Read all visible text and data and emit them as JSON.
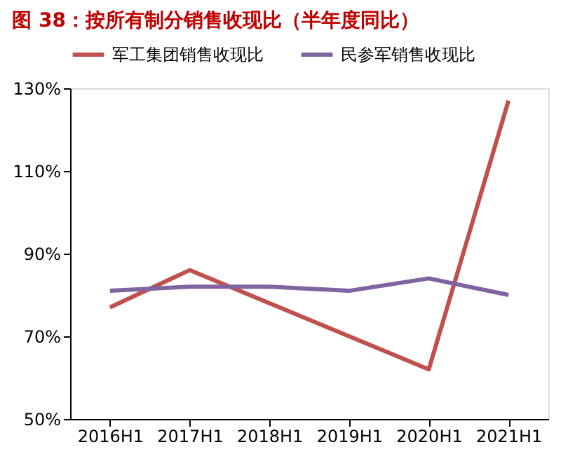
{
  "chart_data": {
    "type": "line",
    "title": "图 38：按所有制分销售收现比（半年度同比）",
    "categories": [
      "2016H1",
      "2017H1",
      "2018H1",
      "2019H1",
      "2020H1",
      "2021H1"
    ],
    "series": [
      {
        "name": "军工集团销售收现比",
        "color": "#c0504d",
        "values": [
          77,
          86,
          78,
          70,
          62,
          127
        ]
      },
      {
        "name": "民参军销售收现比",
        "color": "#8064a2",
        "values": [
          81,
          82,
          82,
          81,
          84,
          80
        ]
      }
    ],
    "ylim": [
      50,
      130
    ],
    "yticks": [
      {
        "value": 50,
        "label": "50%"
      },
      {
        "value": 70,
        "label": "70%"
      },
      {
        "value": 90,
        "label": "90%"
      },
      {
        "value": 110,
        "label": "110%"
      },
      {
        "value": 130,
        "label": "130%"
      }
    ],
    "grid": false,
    "legend": "top",
    "marker": "none",
    "line_style": "solid"
  }
}
